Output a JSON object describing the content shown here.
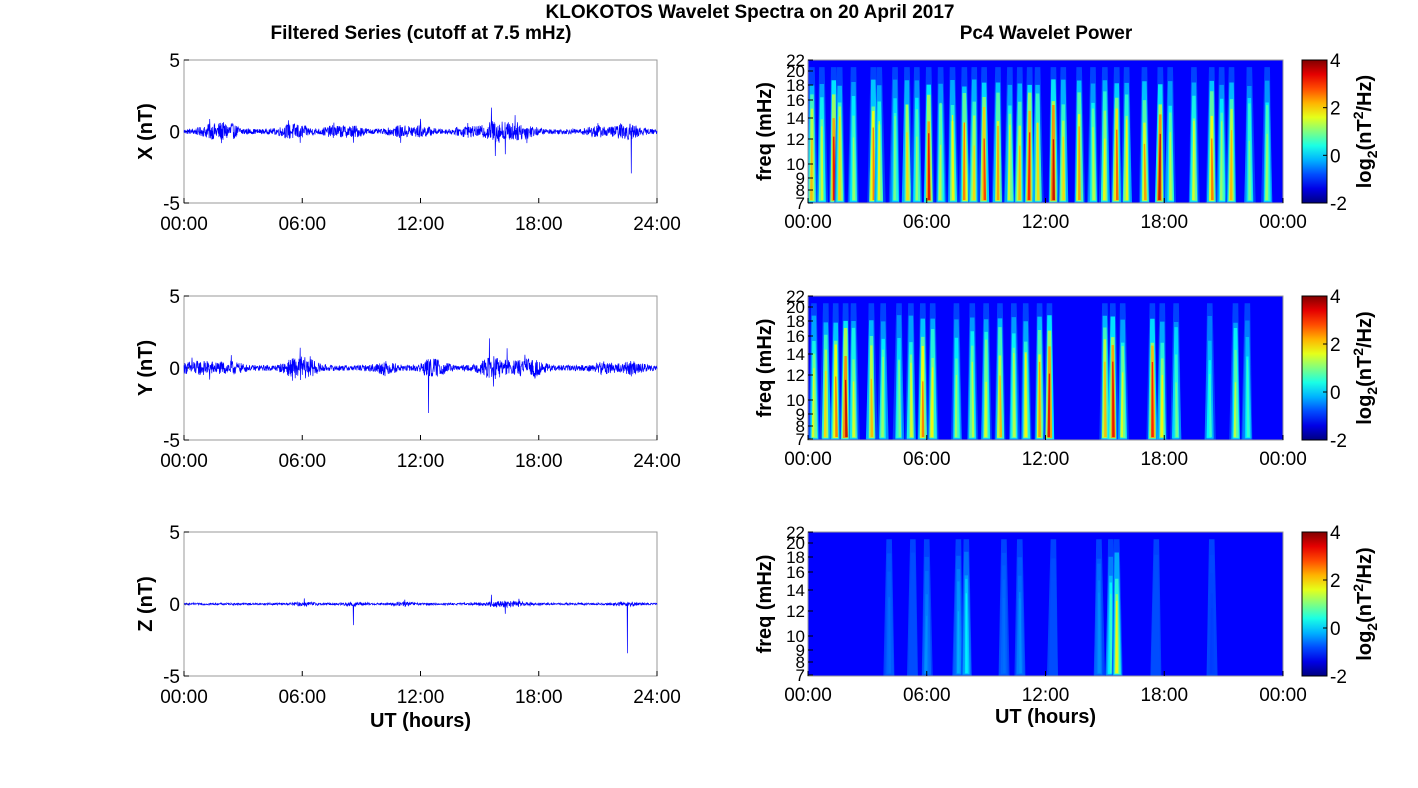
{
  "figure": {
    "title": "KLOKOTOS Wavelet Spectra on 20 April 2017",
    "left_title": "Filtered Series (cutoff at 7.5 mHz)",
    "right_title": "Pc4 Wavelet Power"
  },
  "chart_data": [
    {
      "type": "line",
      "component": "X",
      "ylabel": "X (nT)",
      "xlabel": "",
      "ylim": [
        -5,
        5
      ],
      "yticks": [
        "5",
        "0",
        "-5"
      ],
      "xticks": [
        "00:00",
        "06:00",
        "12:00",
        "18:00",
        "24:00"
      ],
      "x_range_hours": [
        0,
        24
      ],
      "series_color": "#0000ff",
      "baseline_noise_nT": 0.18,
      "events": [
        {
          "t": 1.3,
          "amp": 0.9
        },
        {
          "t": 1.9,
          "amp": -0.9
        },
        {
          "t": 2.4,
          "amp": 0.6
        },
        {
          "t": 5.3,
          "amp": 0.9
        },
        {
          "t": 5.9,
          "amp": -0.8
        },
        {
          "t": 7.6,
          "amp": 0.7
        },
        {
          "t": 8.6,
          "amp": -0.8
        },
        {
          "t": 11.0,
          "amp": -0.9
        },
        {
          "t": 12.0,
          "amp": 0.9
        },
        {
          "t": 14.4,
          "amp": 0.7
        },
        {
          "t": 15.6,
          "amp": 1.9
        },
        {
          "t": 15.8,
          "amp": -2.0
        },
        {
          "t": 16.3,
          "amp": -1.7
        },
        {
          "t": 16.8,
          "amp": 1.3
        },
        {
          "t": 17.4,
          "amp": -0.9
        },
        {
          "t": 21.0,
          "amp": 0.6
        },
        {
          "t": 22.2,
          "amp": 0.5
        },
        {
          "t": 22.7,
          "amp": -3.1
        }
      ]
    },
    {
      "type": "line",
      "component": "Y",
      "ylabel": "Y (nT)",
      "xlabel": "",
      "ylim": [
        -5,
        5
      ],
      "yticks": [
        "5",
        "0",
        "-5"
      ],
      "xticks": [
        "00:00",
        "06:00",
        "12:00",
        "18:00",
        "24:00"
      ],
      "x_range_hours": [
        0,
        24
      ],
      "series_color": "#0000ff",
      "baseline_noise_nT": 0.2,
      "events": [
        {
          "t": 0.4,
          "amp": 0.8
        },
        {
          "t": 1.3,
          "amp": -0.9
        },
        {
          "t": 2.4,
          "amp": 0.9
        },
        {
          "t": 5.5,
          "amp": -1.0
        },
        {
          "t": 5.9,
          "amp": 1.5
        },
        {
          "t": 6.4,
          "amp": 0.9
        },
        {
          "t": 10.2,
          "amp": -0.6
        },
        {
          "t": 12.4,
          "amp": -3.4
        },
        {
          "t": 12.9,
          "amp": 0.6
        },
        {
          "t": 15.5,
          "amp": 2.3
        },
        {
          "t": 15.7,
          "amp": -1.4
        },
        {
          "t": 16.4,
          "amp": 1.5
        },
        {
          "t": 17.3,
          "amp": 1.0
        },
        {
          "t": 17.8,
          "amp": -0.8
        },
        {
          "t": 21.3,
          "amp": 0.5
        },
        {
          "t": 22.7,
          "amp": -0.6
        }
      ]
    },
    {
      "type": "line",
      "component": "Z",
      "ylabel": "Z (nT)",
      "xlabel": "UT (hours)",
      "ylim": [
        -5,
        5
      ],
      "yticks": [
        "5",
        "0",
        "-5"
      ],
      "xticks": [
        "00:00",
        "06:00",
        "12:00",
        "18:00",
        "24:00"
      ],
      "x_range_hours": [
        0,
        24
      ],
      "series_color": "#0000ff",
      "baseline_noise_nT": 0.07,
      "events": [
        {
          "t": 6.1,
          "amp": 0.4
        },
        {
          "t": 8.6,
          "amp": -1.5
        },
        {
          "t": 11.2,
          "amp": 0.3
        },
        {
          "t": 15.6,
          "amp": 0.7
        },
        {
          "t": 16.3,
          "amp": -0.7
        },
        {
          "t": 17.0,
          "amp": 0.4
        },
        {
          "t": 22.5,
          "amp": -3.8
        }
      ]
    },
    {
      "type": "heatmap",
      "component": "X",
      "ylabel": "freq (mHz)",
      "xlabel": "",
      "ylim": [
        7,
        22
      ],
      "yticks": [
        "22",
        "20",
        "18",
        "16",
        "14",
        "12",
        "10",
        "9",
        "8",
        "7"
      ],
      "xticks": [
        "00:00",
        "06:00",
        "12:00",
        "18:00",
        "00:00"
      ],
      "x_range_hours": [
        0,
        24
      ],
      "colorbar": {
        "label": "log2(nT²/Hz)",
        "label_main": "log",
        "label_sub": "2",
        "label_rest": "(nT",
        "label_sup": "2",
        "label_end": "/Hz)",
        "range": [
          -2,
          4
        ],
        "ticks": [
          "4",
          "2",
          "0",
          "-2"
        ],
        "colormap": "jet"
      },
      "bursts": [
        {
          "t": 0.2,
          "p": 2.2
        },
        {
          "t": 0.7,
          "p": 1.5
        },
        {
          "t": 1.3,
          "p": 3.4
        },
        {
          "t": 1.6,
          "p": 2.0
        },
        {
          "t": 2.3,
          "p": 1.2
        },
        {
          "t": 3.3,
          "p": 2.6
        },
        {
          "t": 3.6,
          "p": 1.6
        },
        {
          "t": 4.4,
          "p": 1.0
        },
        {
          "t": 5.0,
          "p": 2.0
        },
        {
          "t": 5.5,
          "p": 1.2
        },
        {
          "t": 6.1,
          "p": 3.4
        },
        {
          "t": 6.7,
          "p": 1.4
        },
        {
          "t": 7.3,
          "p": 1.8
        },
        {
          "t": 7.9,
          "p": 2.6
        },
        {
          "t": 8.4,
          "p": 2.0
        },
        {
          "t": 8.9,
          "p": 3.0
        },
        {
          "t": 9.6,
          "p": 2.4
        },
        {
          "t": 10.2,
          "p": 1.6
        },
        {
          "t": 10.7,
          "p": 2.2
        },
        {
          "t": 11.2,
          "p": 3.2
        },
        {
          "t": 11.6,
          "p": 2.0
        },
        {
          "t": 12.4,
          "p": 3.6
        },
        {
          "t": 12.9,
          "p": 2.0
        },
        {
          "t": 13.7,
          "p": 2.4
        },
        {
          "t": 14.4,
          "p": 1.4
        },
        {
          "t": 15.0,
          "p": 1.8
        },
        {
          "t": 15.6,
          "p": 2.8
        },
        {
          "t": 16.1,
          "p": 1.8
        },
        {
          "t": 17.0,
          "p": 2.4
        },
        {
          "t": 17.8,
          "p": 3.6
        },
        {
          "t": 18.3,
          "p": 1.4
        },
        {
          "t": 19.5,
          "p": 1.6
        },
        {
          "t": 20.4,
          "p": 2.6
        },
        {
          "t": 20.9,
          "p": 1.2
        },
        {
          "t": 21.4,
          "p": 2.2
        },
        {
          "t": 22.3,
          "p": 1.0
        },
        {
          "t": 23.2,
          "p": 1.2
        }
      ]
    },
    {
      "type": "heatmap",
      "component": "Y",
      "ylabel": "freq (mHz)",
      "xlabel": "",
      "ylim": [
        7,
        22
      ],
      "yticks": [
        "22",
        "20",
        "18",
        "16",
        "14",
        "12",
        "10",
        "9",
        "8",
        "7"
      ],
      "xticks": [
        "00:00",
        "06:00",
        "12:00",
        "18:00",
        "00:00"
      ],
      "x_range_hours": [
        0,
        24
      ],
      "colorbar": {
        "label": "log2(nT²/Hz)",
        "label_main": "log",
        "label_sub": "2",
        "label_rest": "(nT",
        "label_sup": "2",
        "label_end": "/Hz)",
        "range": [
          -2,
          4
        ],
        "ticks": [
          "4",
          "2",
          "0",
          "-2"
        ],
        "colormap": "jet"
      },
      "bursts": [
        {
          "t": 0.3,
          "p": 1.6
        },
        {
          "t": 0.9,
          "p": 2.0
        },
        {
          "t": 1.4,
          "p": 2.6
        },
        {
          "t": 1.9,
          "p": 3.6
        },
        {
          "t": 2.3,
          "p": 1.6
        },
        {
          "t": 3.2,
          "p": 2.2
        },
        {
          "t": 3.8,
          "p": 1.2
        },
        {
          "t": 4.6,
          "p": 1.0
        },
        {
          "t": 5.2,
          "p": 1.6
        },
        {
          "t": 5.8,
          "p": 2.6
        },
        {
          "t": 6.3,
          "p": 1.8
        },
        {
          "t": 7.5,
          "p": 1.2
        },
        {
          "t": 8.3,
          "p": 1.4
        },
        {
          "t": 9.0,
          "p": 1.6
        },
        {
          "t": 9.7,
          "p": 2.2
        },
        {
          "t": 10.4,
          "p": 1.4
        },
        {
          "t": 11.0,
          "p": 1.8
        },
        {
          "t": 11.7,
          "p": 2.4
        },
        {
          "t": 12.2,
          "p": 3.4
        },
        {
          "t": 15.0,
          "p": 2.2
        },
        {
          "t": 15.4,
          "p": 3.4
        },
        {
          "t": 15.9,
          "p": 1.6
        },
        {
          "t": 17.4,
          "p": 3.2
        },
        {
          "t": 17.9,
          "p": 1.8
        },
        {
          "t": 18.6,
          "p": 1.0
        },
        {
          "t": 20.3,
          "p": 0.6
        },
        {
          "t": 21.6,
          "p": 1.4
        },
        {
          "t": 22.2,
          "p": 0.6
        }
      ]
    },
    {
      "type": "heatmap",
      "component": "Z",
      "ylabel": "freq (mHz)",
      "xlabel": "UT (hours)",
      "ylim": [
        7,
        22
      ],
      "yticks": [
        "22",
        "20",
        "18",
        "16",
        "14",
        "12",
        "10",
        "9",
        "8",
        "7"
      ],
      "xticks": [
        "00:00",
        "06:00",
        "12:00",
        "18:00",
        "00:00"
      ],
      "x_range_hours": [
        0,
        24
      ],
      "colorbar": {
        "label": "log2(nT²/Hz)",
        "label_main": "log",
        "label_sub": "2",
        "label_rest": "(nT",
        "label_sup": "2",
        "label_end": "/Hz)",
        "range": [
          -2,
          4
        ],
        "ticks": [
          "4",
          "2",
          "0",
          "-2"
        ],
        "colormap": "jet"
      },
      "bursts": [
        {
          "t": 4.1,
          "p": -0.6
        },
        {
          "t": 5.3,
          "p": -0.8
        },
        {
          "t": 6.0,
          "p": -0.4
        },
        {
          "t": 7.6,
          "p": -0.2
        },
        {
          "t": 8.0,
          "p": 0.2
        },
        {
          "t": 9.9,
          "p": -0.6
        },
        {
          "t": 10.7,
          "p": -0.4
        },
        {
          "t": 12.4,
          "p": -0.8
        },
        {
          "t": 14.7,
          "p": -0.4
        },
        {
          "t": 15.3,
          "p": 0.6
        },
        {
          "t": 15.6,
          "p": 1.8
        },
        {
          "t": 17.6,
          "p": -0.8
        },
        {
          "t": 20.4,
          "p": -0.9
        }
      ]
    }
  ]
}
